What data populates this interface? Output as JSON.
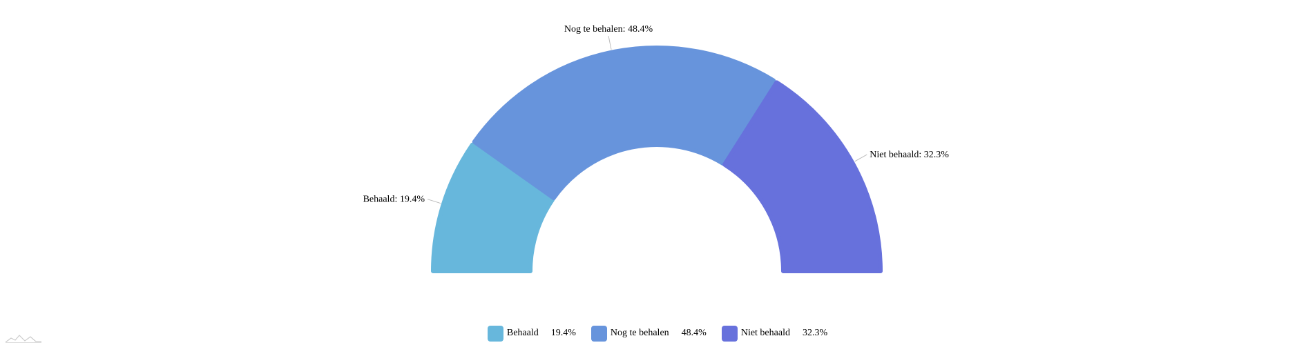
{
  "chart_data": {
    "type": "pie",
    "variant": "semi-donut",
    "categories": [
      "Behaald",
      "Nog te behalen",
      "Niet behaald"
    ],
    "values": [
      19.4,
      48.4,
      32.3
    ],
    "colors": [
      "#67b7dc",
      "#6794dc",
      "#6771dc"
    ],
    "slice_labels": [
      "Behaald: 19.4%",
      "Nog te behalen: 48.4%",
      "Niet behaald: 32.3%"
    ],
    "legend_values": [
      "19.4%",
      "48.4%",
      "32.3%"
    ],
    "legend_position": "bottom"
  },
  "watermark": {
    "icon": "amcharts-logo-icon"
  }
}
